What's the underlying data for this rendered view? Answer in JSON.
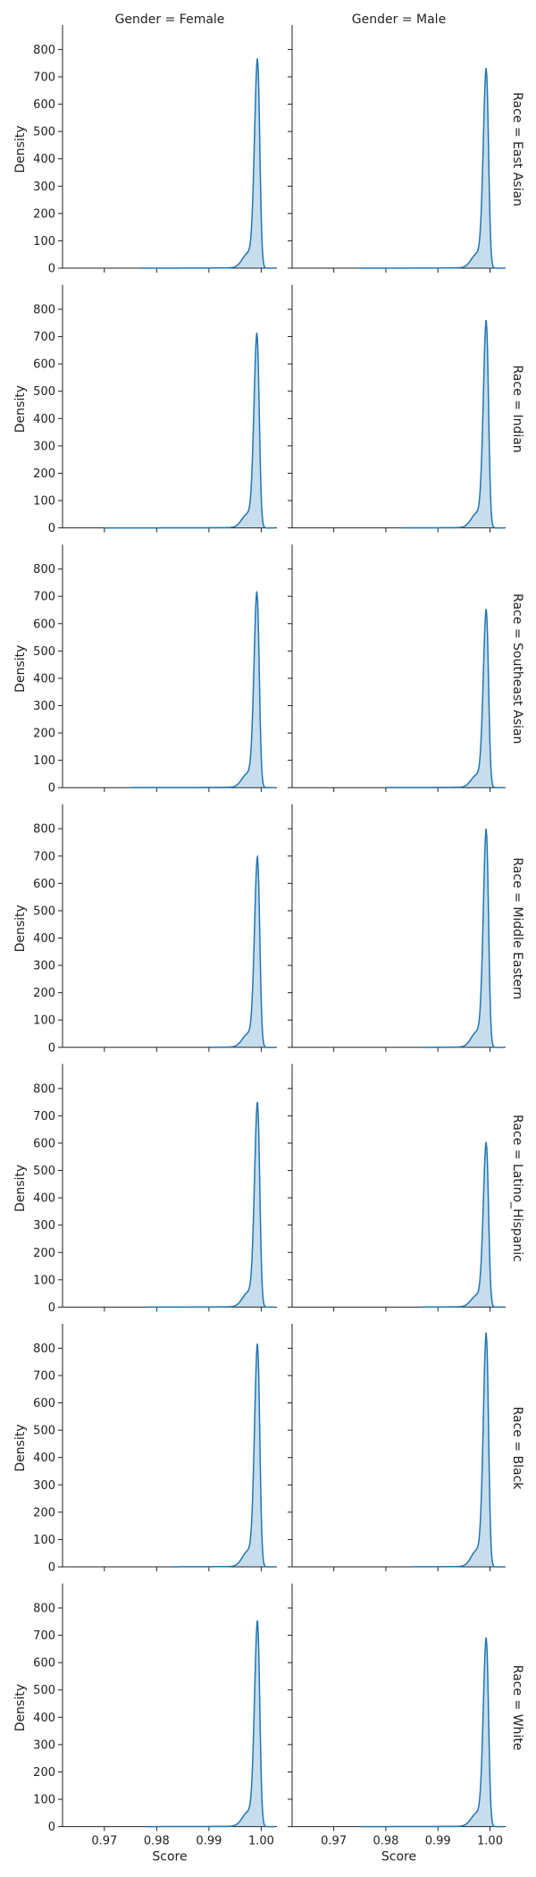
{
  "chart_data": {
    "type": "area",
    "facet": "row-col grid (KDE density plots)",
    "col_titles": [
      "Gender = Female",
      "Gender = Male"
    ],
    "row_titles": [
      "Race = East Asian",
      "Race = Indian",
      "Race = Southeast Asian",
      "Race = Middle Eastern",
      "Race = Latino_Hispanic",
      "Race = Black",
      "Race = White"
    ],
    "xlabel": "Score",
    "ylabel": "Density",
    "xlim": [
      0.962,
      1.003
    ],
    "ylim": [
      0,
      870
    ],
    "xticks": [
      0.97,
      0.98,
      0.99,
      1.0
    ],
    "xtick_labels": [
      "0.97",
      "0.98",
      "0.99",
      "1.00"
    ],
    "yticks": [
      0,
      100,
      200,
      300,
      400,
      500,
      600,
      700,
      800
    ],
    "ytick_labels": [
      "0",
      "100",
      "200",
      "300",
      "400",
      "500",
      "600",
      "700",
      "800"
    ],
    "series_color": "#1f77b4",
    "fill_color": "#1f77b4",
    "panels": [
      {
        "row": 0,
        "col": 0,
        "x_start": 0.977,
        "peak_x": 0.9993,
        "peak": 755
      },
      {
        "row": 0,
        "col": 1,
        "x_start": 0.975,
        "peak_x": 0.9993,
        "peak": 720
      },
      {
        "row": 1,
        "col": 0,
        "x_start": 0.97,
        "peak_x": 0.9992,
        "peak": 700
      },
      {
        "row": 1,
        "col": 1,
        "x_start": 0.983,
        "peak_x": 0.9993,
        "peak": 745
      },
      {
        "row": 2,
        "col": 0,
        "x_start": 0.975,
        "peak_x": 0.9992,
        "peak": 705
      },
      {
        "row": 2,
        "col": 1,
        "x_start": 0.98,
        "peak_x": 0.9993,
        "peak": 640
      },
      {
        "row": 3,
        "col": 0,
        "x_start": 0.99,
        "peak_x": 0.9993,
        "peak": 683
      },
      {
        "row": 3,
        "col": 1,
        "x_start": 0.987,
        "peak_x": 0.9993,
        "peak": 785
      },
      {
        "row": 4,
        "col": 0,
        "x_start": 0.978,
        "peak_x": 0.9993,
        "peak": 735
      },
      {
        "row": 4,
        "col": 1,
        "x_start": 0.987,
        "peak_x": 0.9993,
        "peak": 592
      },
      {
        "row": 5,
        "col": 0,
        "x_start": 0.983,
        "peak_x": 0.9993,
        "peak": 800
      },
      {
        "row": 5,
        "col": 1,
        "x_start": 0.985,
        "peak_x": 0.9993,
        "peak": 840
      },
      {
        "row": 6,
        "col": 0,
        "x_start": 0.978,
        "peak_x": 0.9993,
        "peak": 738
      },
      {
        "row": 6,
        "col": 1,
        "x_start": 0.975,
        "peak_x": 0.9993,
        "peak": 680
      }
    ]
  }
}
